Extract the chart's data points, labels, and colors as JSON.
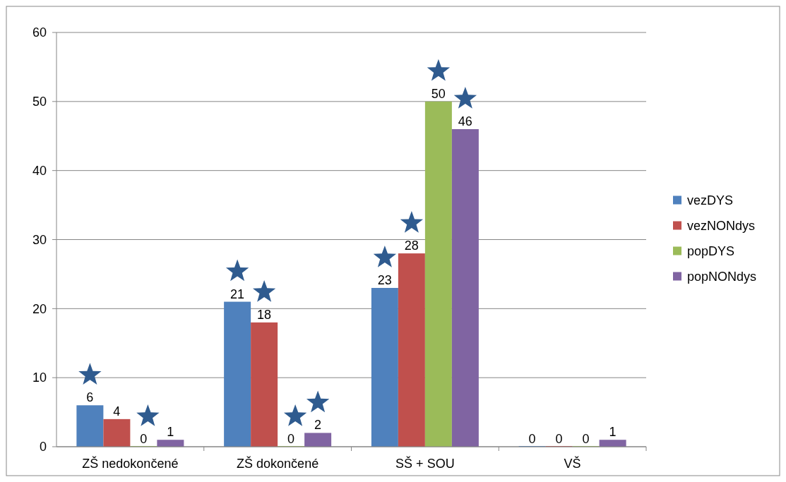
{
  "chart_data": {
    "type": "bar",
    "categories": [
      "ZŠ nedokončené",
      "ZŠ dokončené",
      "SŠ + SOU",
      "VŠ"
    ],
    "series": [
      {
        "name": "vezDYS",
        "color": "#4f81bd",
        "values": [
          6,
          21,
          23,
          0
        ]
      },
      {
        "name": "vezNONdys",
        "color": "#c0504d",
        "values": [
          4,
          18,
          28,
          0
        ]
      },
      {
        "name": "popDYS",
        "color": "#9bbb59",
        "values": [
          0,
          0,
          50,
          0
        ]
      },
      {
        "name": "popNONdys",
        "color": "#8064a2",
        "values": [
          1,
          2,
          46,
          1
        ]
      }
    ],
    "ylim": [
      0,
      60
    ],
    "yticks": [
      0,
      10,
      20,
      30,
      40,
      50,
      60
    ],
    "grid": "y",
    "legend": "right",
    "data_labels": true
  }
}
